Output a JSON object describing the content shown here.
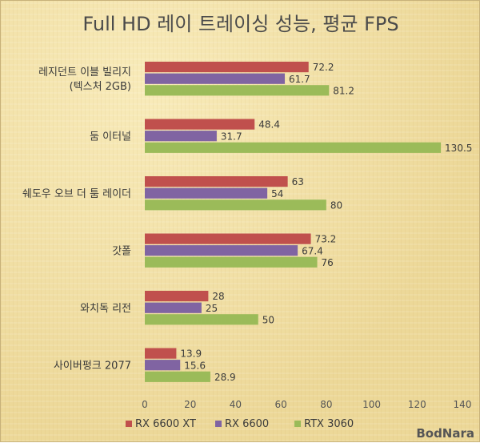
{
  "chart_data": {
    "type": "bar",
    "orientation": "horizontal",
    "title": "Full HD 레이 트레이싱 성능, 평균 FPS",
    "categories": [
      [
        "레지던트 이블 빌리지",
        "(텍스처 2GB)"
      ],
      [
        "둠 이터널"
      ],
      [
        "쉐도우 오브 더 툼 레이더"
      ],
      [
        "갓폴"
      ],
      [
        "와치독 리전"
      ],
      [
        "사이버펑크 2077"
      ]
    ],
    "series": [
      {
        "name": "RX 6600 XT",
        "color": "#c0504d",
        "values": [
          72.2,
          48.4,
          63,
          73.2,
          28,
          13.9
        ]
      },
      {
        "name": "RX 6600",
        "color": "#8064a2",
        "values": [
          61.7,
          31.7,
          54,
          67.4,
          25,
          15.6
        ]
      },
      {
        "name": "RTX 3060",
        "color": "#9bbb59",
        "values": [
          81.2,
          130.5,
          80,
          76,
          50,
          28.9
        ]
      }
    ],
    "xlim": [
      0,
      140
    ],
    "xticks": [
      0,
      20,
      40,
      60,
      80,
      100,
      120,
      140
    ],
    "grid": false,
    "legend_position": "bottom"
  },
  "watermark": {
    "text": "BodNara"
  }
}
